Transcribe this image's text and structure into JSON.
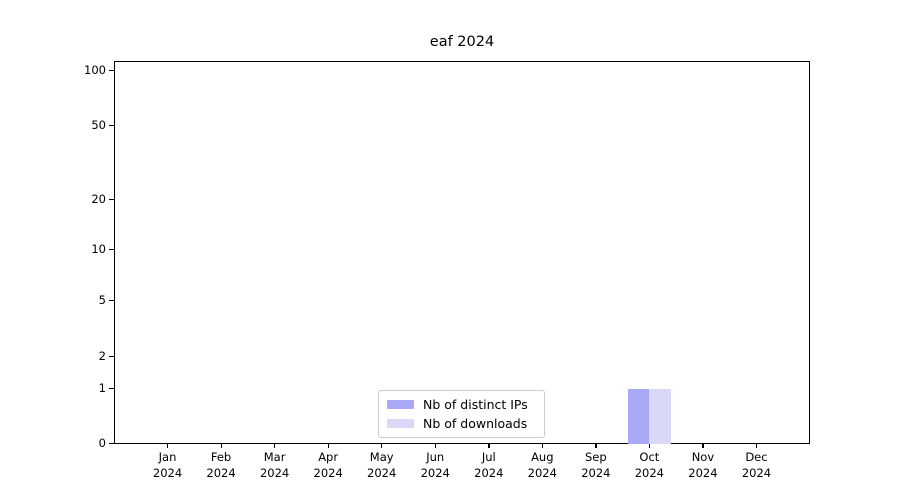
{
  "chart_data": {
    "type": "bar",
    "title": "eaf 2024",
    "categories": [
      "Jan",
      "Feb",
      "Mar",
      "Apr",
      "May",
      "Jun",
      "Jul",
      "Aug",
      "Sep",
      "Oct",
      "Nov",
      "Dec"
    ],
    "x_year_label": "2024",
    "series": [
      {
        "name": "Nb of distinct IPs",
        "color": "#a9a9f5",
        "values": [
          0,
          0,
          0,
          0,
          0,
          0,
          0,
          0,
          0,
          1,
          0,
          0
        ]
      },
      {
        "name": "Nb of downloads",
        "color": "#d9d9f7",
        "values": [
          0,
          0,
          0,
          0,
          0,
          0,
          0,
          0,
          0,
          1,
          0,
          0
        ]
      }
    ],
    "xlabel": "",
    "ylabel": "",
    "y_axis": {
      "scale": "log-like",
      "tick_labels": [
        100,
        50,
        20,
        10,
        5,
        2,
        1,
        0
      ],
      "decade_gridlines": [
        100,
        10,
        1
      ],
      "labeled_nondecade_gridlines": [
        50,
        20,
        5,
        2
      ],
      "minor_gridlines": [
        110,
        90,
        80,
        70,
        60,
        40,
        30,
        9,
        8,
        7,
        6,
        4,
        3
      ],
      "range_bottom": 0,
      "range_top": 110,
      "grid": "on"
    },
    "legend": {
      "position": "lower-center",
      "entries": [
        "Nb of distinct IPs",
        "Nb of downloads"
      ]
    },
    "colors": {
      "bar_distinct_ips": "#a9a9f5",
      "bar_downloads": "#d9d9f7",
      "grid_decade": "#c6c6c6",
      "grid_minor": "#ececec",
      "axis": "#000000"
    }
  }
}
